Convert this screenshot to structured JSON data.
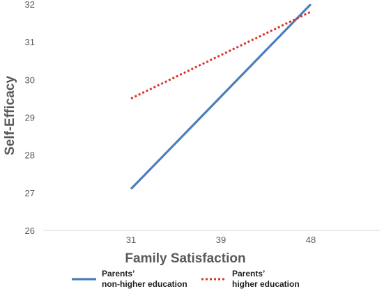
{
  "chart_data": {
    "type": "line",
    "xlabel": "Family Satisfaction",
    "ylabel": "Self-Efficacy",
    "categories": [
      "31",
      "39",
      "48"
    ],
    "ylim": [
      26,
      32
    ],
    "yticks": [
      26,
      27,
      28,
      29,
      30,
      31,
      32
    ],
    "grid": false,
    "legend_position": "bottom",
    "series": [
      {
        "name_line1": "Parents’",
        "name_line2": "non-higher education",
        "style": "solid",
        "color": "#4a7ebb",
        "points": [
          {
            "x": "31",
            "y": 27.1
          },
          {
            "x": "48",
            "y": 32.0
          }
        ]
      },
      {
        "name_line1": "Parents’",
        "name_line2": "higher education",
        "style": "dotted",
        "color": "#d9342b",
        "points": [
          {
            "x": "31",
            "y": 29.5
          },
          {
            "x": "48",
            "y": 31.8
          }
        ]
      }
    ]
  },
  "colors": {
    "axis": "#d9d9d9",
    "tick_label": "#595959",
    "axis_title": "#595959",
    "legend_text": "#1f1f1f"
  }
}
